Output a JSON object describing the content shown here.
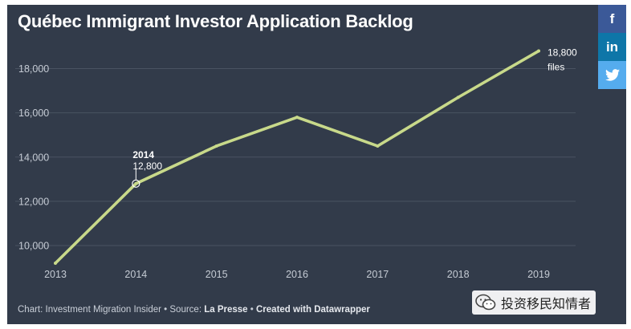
{
  "title": "Québec Immigrant Investor Application Backlog",
  "footer": {
    "prefix": "Chart: Investment Migration Insider • Source: ",
    "source": "La Presse",
    "sep": " • ",
    "created": "Created with Datawrapper"
  },
  "social": {
    "facebook": "f",
    "linkedin": "in",
    "twitter_icon": "twitter-icon",
    "colors": {
      "facebook": "#3b5998",
      "linkedin": "#0e76a8",
      "twitter": "#55acee"
    }
  },
  "watermark": {
    "icon": "wechat-icon",
    "text": "投资移民知情者"
  },
  "colors": {
    "background": "#323b4a",
    "line": "#c8d98a",
    "grid": "#4a5362",
    "tick": "#c5cbd4"
  },
  "chart_data": {
    "type": "line",
    "x": [
      2013,
      2014,
      2015,
      2016,
      2017,
      2018,
      2019
    ],
    "series": [
      {
        "values": [
          9200,
          12800,
          14500,
          15800,
          14500,
          16700,
          18800
        ]
      }
    ],
    "xlim": [
      2013,
      2019
    ],
    "ylim": [
      9200,
      19000
    ],
    "yticks": [
      10000,
      12000,
      14000,
      16000,
      18000
    ],
    "ytick_labels": [
      "10,000",
      "12,000",
      "14,000",
      "16,000",
      "18,000"
    ],
    "xtick_labels": [
      "2013",
      "2014",
      "2015",
      "2016",
      "2017",
      "2018",
      "2019"
    ],
    "grid": true,
    "annotations": [
      {
        "x": 2014,
        "y": 12800,
        "lines": [
          "2014",
          "12,800"
        ]
      },
      {
        "x": 2019,
        "y": 18800,
        "lines": [
          "18,800",
          "files"
        ]
      }
    ]
  }
}
